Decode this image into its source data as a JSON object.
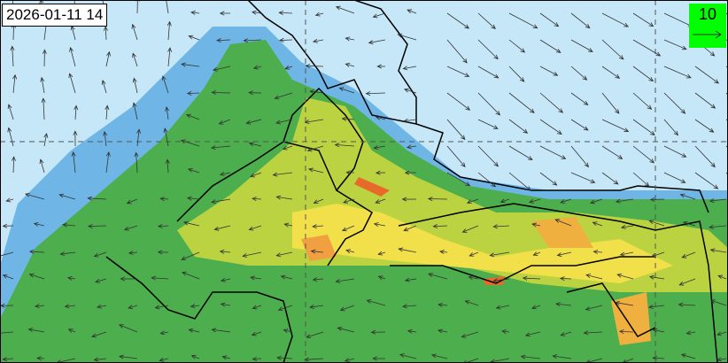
{
  "timestamp": "2026-01-11 14",
  "wind_legend": {
    "value": "10",
    "color": "#00ff00"
  },
  "colors": {
    "sea_low": "#c6e7f8",
    "low": "#6fb6e6",
    "mid": "#4cae4c",
    "high": "#f2e04a",
    "peak": "#e86a2a"
  }
}
